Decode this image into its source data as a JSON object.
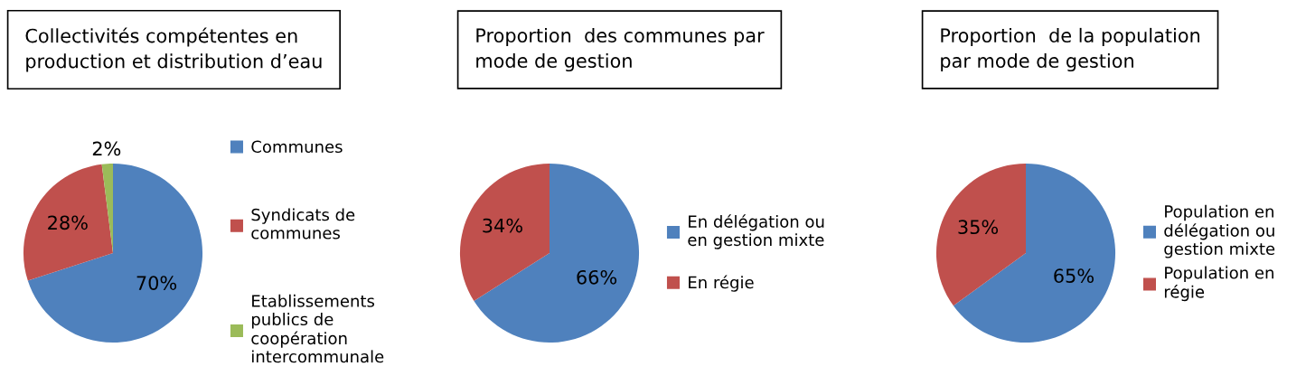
{
  "chart_data": [
    {
      "type": "pie",
      "title": "Collectivités compétentes en production et distribution d’eau",
      "categories": [
        "Communes",
        "Syndicats de communes",
        "Etablissements publics de coopération intercommunale"
      ],
      "values": [
        70,
        28,
        2
      ],
      "value_labels": [
        "70%",
        "28%",
        "2%"
      ],
      "colors": [
        "#4f81bd",
        "#c0504d",
        "#9bbb59"
      ],
      "legend": "right"
    },
    {
      "type": "pie",
      "title": "Proportion  des communes par mode de gestion",
      "categories": [
        "En délégation ou en gestion mixte",
        "En régie"
      ],
      "values": [
        66,
        34
      ],
      "value_labels": [
        "66%",
        "34%"
      ],
      "colors": [
        "#4f81bd",
        "#c0504d"
      ],
      "legend": "right"
    },
    {
      "type": "pie",
      "title": "Proportion  de la population par mode de gestion",
      "categories": [
        "Population en délégation ou gestion mixte",
        "Population en régie"
      ],
      "values": [
        65,
        35
      ],
      "value_labels": [
        "65%",
        "35%"
      ],
      "colors": [
        "#4f81bd",
        "#c0504d"
      ],
      "legend": "right"
    }
  ]
}
